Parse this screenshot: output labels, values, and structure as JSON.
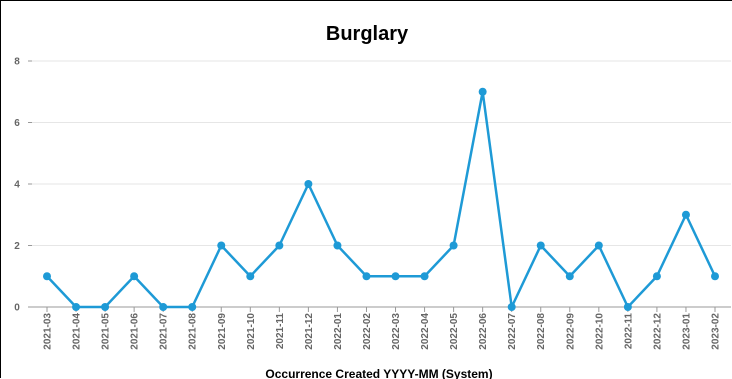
{
  "chart_data": {
    "type": "line",
    "title": "Burglary",
    "xlabel": "Occurrence Created YYYY-MM (System)",
    "ylabel": "",
    "ylim": [
      0,
      8
    ],
    "yticks": [
      0,
      2,
      4,
      6,
      8
    ],
    "grid": true,
    "legend": "none",
    "categories": [
      "2021-03",
      "2021-04",
      "2021-05",
      "2021-06",
      "2021-07",
      "2021-08",
      "2021-09",
      "2021-10",
      "2021-11",
      "2021-12",
      "2022-01",
      "2022-02",
      "2022-03",
      "2022-04",
      "2022-05",
      "2022-06",
      "2022-07",
      "2022-08",
      "2022-09",
      "2022-10",
      "2022-11",
      "2022-12",
      "2023-01",
      "2023-02"
    ],
    "series": [
      {
        "values": [
          1,
          0,
          0,
          1,
          0,
          0,
          2,
          1,
          2,
          4,
          2,
          1,
          1,
          1,
          2,
          7,
          0,
          2,
          1,
          2,
          0,
          1,
          3,
          1
        ],
        "color": "#1e9ad6"
      }
    ]
  }
}
